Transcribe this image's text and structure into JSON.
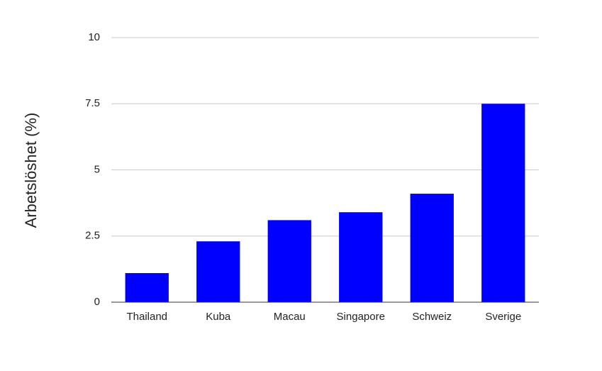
{
  "chart_data": {
    "type": "bar",
    "y_label": "Arbetslöshet (%)",
    "categories": [
      "Thailand",
      "Kuba",
      "Macau",
      "Singapore",
      "Schweiz",
      "Sverige"
    ],
    "values": [
      1.1,
      2.3,
      3.1,
      3.4,
      4.1,
      7.5
    ],
    "color": "#0000ff",
    "ylim": [
      0,
      10
    ],
    "yticks": [
      0,
      2.5,
      5,
      7.5,
      10
    ],
    "grid": true
  }
}
